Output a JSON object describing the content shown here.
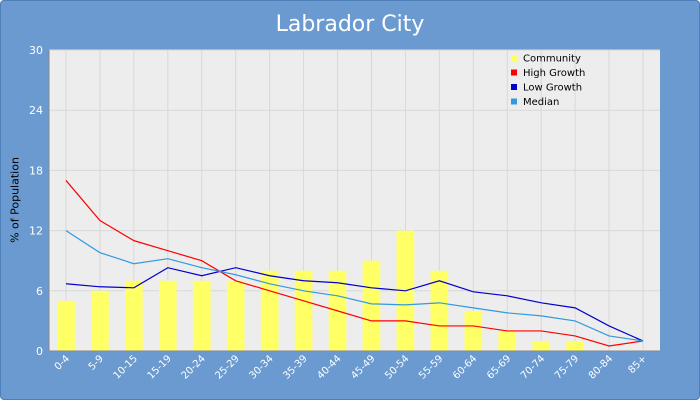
{
  "chart_data": {
    "type": "bar",
    "title": "Labrador City",
    "xlabel": "",
    "ylabel": "% of Population",
    "categories": [
      "0-4",
      "5-9",
      "10-15",
      "15-19",
      "20-24",
      "25-29",
      "30-34",
      "35-39",
      "40-44",
      "45-49",
      "50-54",
      "55-59",
      "60-64",
      "65-69",
      "70-74",
      "75-79",
      "80-84",
      "85+"
    ],
    "ylim": [
      0,
      30
    ],
    "yticks": [
      0,
      6,
      12,
      18,
      24,
      30
    ],
    "grid": true,
    "legend_position": "top-right",
    "series": [
      {
        "name": "Community",
        "kind": "bar",
        "color": "#ffff66",
        "values": [
          5,
          6,
          7,
          7,
          7,
          7,
          8,
          8,
          8,
          9,
          12,
          8,
          4,
          2,
          1,
          1,
          0,
          0
        ]
      },
      {
        "name": "High Growth",
        "kind": "line",
        "color": "#ff0000",
        "values": [
          17,
          13,
          11,
          10,
          9,
          7,
          6,
          5,
          4,
          3,
          3,
          2.5,
          2.5,
          2,
          2,
          1.5,
          0.5,
          1
        ]
      },
      {
        "name": "Low Growth",
        "kind": "line",
        "color": "#0000cc",
        "values": [
          6.7,
          6.4,
          6.3,
          8.3,
          7.5,
          8.3,
          7.5,
          7,
          6.8,
          6.3,
          6,
          7,
          5.9,
          5.5,
          4.8,
          4.3,
          2.5,
          1
        ]
      },
      {
        "name": "Median",
        "kind": "line",
        "color": "#3399dd",
        "values": [
          12,
          9.8,
          8.7,
          9.2,
          8.3,
          7.6,
          6.7,
          6,
          5.5,
          4.7,
          4.6,
          4.8,
          4.3,
          3.8,
          3.5,
          3,
          1.5,
          1
        ]
      }
    ]
  }
}
